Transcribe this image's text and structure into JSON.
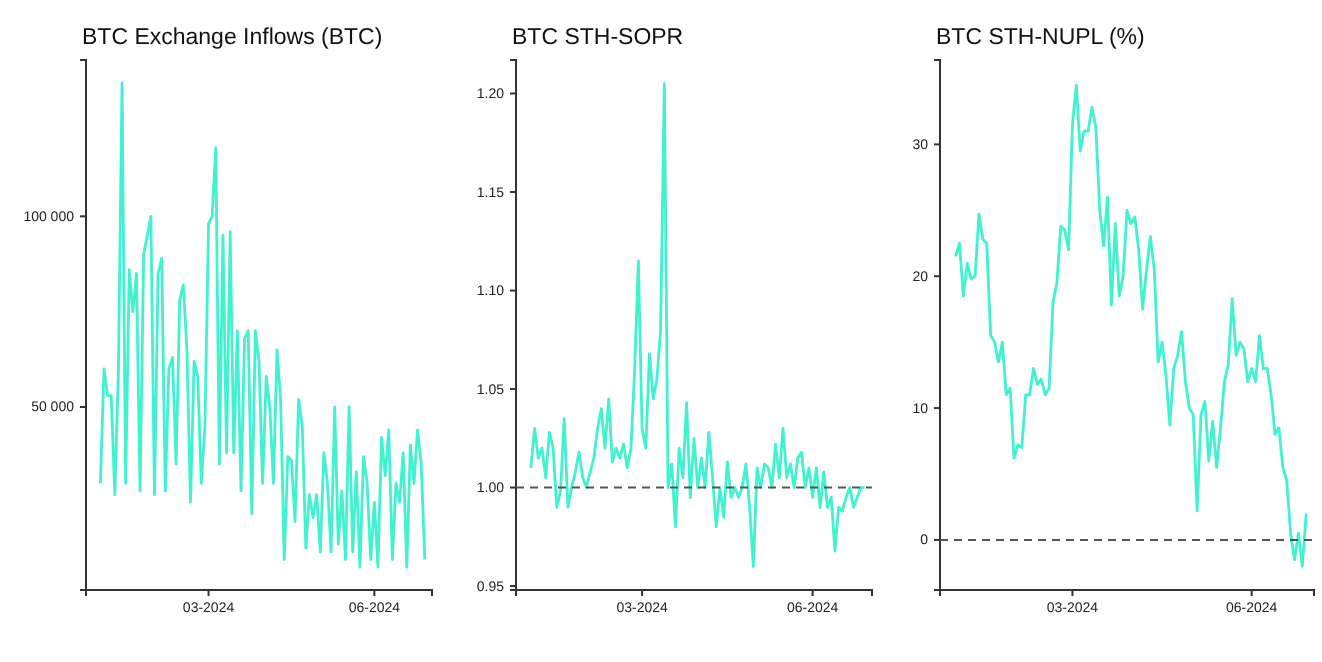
{
  "chart_data": [
    {
      "type": "line",
      "title": "BTC Exchange Inflows (BTC)",
      "x": [
        "2024-01-01",
        "2024-01-03",
        "2024-01-05",
        "2024-01-07",
        "2024-01-09",
        "2024-01-11",
        "2024-01-13",
        "2024-01-15",
        "2024-01-17",
        "2024-01-19",
        "2024-01-21",
        "2024-01-23",
        "2024-01-25",
        "2024-01-27",
        "2024-01-29",
        "2024-01-31",
        "2024-02-02",
        "2024-02-04",
        "2024-02-06",
        "2024-02-08",
        "2024-02-10",
        "2024-02-12",
        "2024-02-14",
        "2024-02-16",
        "2024-02-18",
        "2024-02-20",
        "2024-02-22",
        "2024-02-24",
        "2024-02-26",
        "2024-02-28",
        "2024-03-01",
        "2024-03-03",
        "2024-03-05",
        "2024-03-07",
        "2024-03-09",
        "2024-03-11",
        "2024-03-13",
        "2024-03-15",
        "2024-03-17",
        "2024-03-19",
        "2024-03-21",
        "2024-03-23",
        "2024-03-25",
        "2024-03-27",
        "2024-03-29",
        "2024-03-31",
        "2024-04-02",
        "2024-04-04",
        "2024-04-06",
        "2024-04-08",
        "2024-04-10",
        "2024-04-12",
        "2024-04-14",
        "2024-04-16",
        "2024-04-18",
        "2024-04-20",
        "2024-04-22",
        "2024-04-24",
        "2024-04-26",
        "2024-04-28",
        "2024-04-30",
        "2024-05-02",
        "2024-05-04",
        "2024-05-06",
        "2024-05-08",
        "2024-05-10",
        "2024-05-12",
        "2024-05-14",
        "2024-05-16",
        "2024-05-18",
        "2024-05-20",
        "2024-05-22",
        "2024-05-24",
        "2024-05-26",
        "2024-05-28",
        "2024-05-30",
        "2024-06-01",
        "2024-06-03",
        "2024-06-05",
        "2024-06-07",
        "2024-06-09",
        "2024-06-11",
        "2024-06-13",
        "2024-06-15",
        "2024-06-17",
        "2024-06-19",
        "2024-06-21",
        "2024-06-23",
        "2024-06-25",
        "2024-06-27",
        "2024-06-29"
      ],
      "series": [
        {
          "color": "#40f2cf",
          "values": [
            30000,
            60000,
            53000,
            53000,
            27000,
            60000,
            135000,
            30000,
            86000,
            75000,
            85000,
            28000,
            90000,
            95000,
            100000,
            27000,
            85000,
            89000,
            28000,
            60000,
            63000,
            35000,
            78000,
            82000,
            65000,
            25000,
            62000,
            58000,
            30000,
            45000,
            98000,
            100000,
            118000,
            35000,
            95000,
            38000,
            96000,
            38000,
            70000,
            28000,
            68000,
            70000,
            22000,
            70000,
            62000,
            30000,
            58000,
            50000,
            30000,
            65000,
            52000,
            10000,
            37000,
            36000,
            20000,
            52000,
            45000,
            13000,
            27000,
            21000,
            27000,
            12000,
            38000,
            30000,
            12000,
            50000,
            14000,
            28000,
            10000,
            50000,
            12000,
            33000,
            8000,
            37000,
            30000,
            10000,
            25000,
            8000,
            42000,
            32000,
            44000,
            10000,
            30000,
            25000,
            38000,
            8000,
            40000,
            30000,
            44000,
            35000,
            10000
          ]
        }
      ],
      "xlim": [
        "2023-12-24",
        "2024-07-03"
      ],
      "xticks": [
        {
          "value": "2024-03-01",
          "label": "03-2024"
        },
        {
          "value": "2024-06-01",
          "label": "06-2024"
        }
      ],
      "ylim": [
        2000,
        141000
      ],
      "yticks": [
        {
          "value": 50000,
          "label": "50 000"
        },
        {
          "value": 100000,
          "label": "100 000"
        }
      ],
      "grid": false
    },
    {
      "type": "line",
      "title": "BTC STH-SOPR",
      "x": [
        "2024-01-01",
        "2024-01-03",
        "2024-01-05",
        "2024-01-07",
        "2024-01-09",
        "2024-01-11",
        "2024-01-13",
        "2024-01-15",
        "2024-01-17",
        "2024-01-19",
        "2024-01-21",
        "2024-01-23",
        "2024-01-25",
        "2024-01-27",
        "2024-01-29",
        "2024-01-31",
        "2024-02-02",
        "2024-02-04",
        "2024-02-06",
        "2024-02-08",
        "2024-02-10",
        "2024-02-12",
        "2024-02-14",
        "2024-02-16",
        "2024-02-18",
        "2024-02-20",
        "2024-02-22",
        "2024-02-24",
        "2024-02-26",
        "2024-02-28",
        "2024-03-01",
        "2024-03-03",
        "2024-03-05",
        "2024-03-07",
        "2024-03-09",
        "2024-03-11",
        "2024-03-13",
        "2024-03-15",
        "2024-03-17",
        "2024-03-19",
        "2024-03-21",
        "2024-03-23",
        "2024-03-25",
        "2024-03-27",
        "2024-03-29",
        "2024-03-31",
        "2024-04-02",
        "2024-04-04",
        "2024-04-06",
        "2024-04-08",
        "2024-04-10",
        "2024-04-12",
        "2024-04-14",
        "2024-04-16",
        "2024-04-18",
        "2024-04-20",
        "2024-04-22",
        "2024-04-24",
        "2024-04-26",
        "2024-04-28",
        "2024-04-30",
        "2024-05-02",
        "2024-05-04",
        "2024-05-06",
        "2024-05-08",
        "2024-05-10",
        "2024-05-12",
        "2024-05-14",
        "2024-05-16",
        "2024-05-18",
        "2024-05-20",
        "2024-05-22",
        "2024-05-24",
        "2024-05-26",
        "2024-05-28",
        "2024-05-30",
        "2024-06-01",
        "2024-06-03",
        "2024-06-05",
        "2024-06-07",
        "2024-06-09",
        "2024-06-11",
        "2024-06-13",
        "2024-06-15",
        "2024-06-17",
        "2024-06-19",
        "2024-06-21",
        "2024-06-23",
        "2024-06-25",
        "2024-06-27",
        "2024-06-29"
      ],
      "series": [
        {
          "color": "#40f2cf",
          "values": [
            1.01,
            1.03,
            1.015,
            1.02,
            1.005,
            1.028,
            1.02,
            0.99,
            0.998,
            1.035,
            0.99,
            1.0,
            1.008,
            1.018,
            1.005,
            1.0,
            1.008,
            1.015,
            1.03,
            1.04,
            1.02,
            1.045,
            1.013,
            1.02,
            1.015,
            1.022,
            1.01,
            1.02,
            1.06,
            1.115,
            1.03,
            1.02,
            1.068,
            1.045,
            1.055,
            1.08,
            1.205,
            1.0,
            1.012,
            0.98,
            1.02,
            1.005,
            1.043,
            0.995,
            1.025,
            1.0,
            1.015,
            1.0,
            1.028,
            1.005,
            0.98,
            1.0,
            0.985,
            1.013,
            0.995,
            1.0,
            0.995,
            1.0,
            1.012,
            0.99,
            0.96,
            1.01,
            1.0,
            1.012,
            1.01,
            1.0,
            1.022,
            1.005,
            1.03,
            1.005,
            1.012,
            1.0,
            1.015,
            1.018,
            1.0,
            1.01,
            0.995,
            1.01,
            0.99,
            1.008,
            0.99,
            0.995,
            0.968,
            0.99,
            0.988,
            0.995,
            1.0,
            0.99,
            0.995,
            1.0,
            1.0
          ]
        }
      ],
      "xlim": [
        "2023-12-24",
        "2024-07-03"
      ],
      "xticks": [
        {
          "value": "2024-03-01",
          "label": "03-2024"
        },
        {
          "value": "2024-06-01",
          "label": "06-2024"
        }
      ],
      "ylim": [
        0.948,
        1.217
      ],
      "yticks": [
        0.95,
        {
          "value": 1.0,
          "label": "1.00"
        },
        1.05,
        {
          "value": 1.1,
          "label": "1.10"
        },
        1.15,
        {
          "value": 1.2,
          "label": "1.20"
        }
      ],
      "ref_lines": [
        {
          "axis": "y",
          "value": 1.0,
          "line_style": "dashed",
          "color": "#555555"
        }
      ],
      "grid": false
    },
    {
      "type": "line",
      "title": "BTC STH-NUPL (%)",
      "x": [
        "2024-01-01",
        "2024-01-03",
        "2024-01-05",
        "2024-01-07",
        "2024-01-09",
        "2024-01-11",
        "2024-01-13",
        "2024-01-15",
        "2024-01-17",
        "2024-01-19",
        "2024-01-21",
        "2024-01-23",
        "2024-01-25",
        "2024-01-27",
        "2024-01-29",
        "2024-01-31",
        "2024-02-02",
        "2024-02-04",
        "2024-02-06",
        "2024-02-08",
        "2024-02-10",
        "2024-02-12",
        "2024-02-14",
        "2024-02-16",
        "2024-02-18",
        "2024-02-20",
        "2024-02-22",
        "2024-02-24",
        "2024-02-26",
        "2024-02-28",
        "2024-03-01",
        "2024-03-03",
        "2024-03-05",
        "2024-03-07",
        "2024-03-09",
        "2024-03-11",
        "2024-03-13",
        "2024-03-15",
        "2024-03-17",
        "2024-03-19",
        "2024-03-21",
        "2024-03-23",
        "2024-03-25",
        "2024-03-27",
        "2024-03-29",
        "2024-03-31",
        "2024-04-02",
        "2024-04-04",
        "2024-04-06",
        "2024-04-08",
        "2024-04-10",
        "2024-04-12",
        "2024-04-14",
        "2024-04-16",
        "2024-04-18",
        "2024-04-20",
        "2024-04-22",
        "2024-04-24",
        "2024-04-26",
        "2024-04-28",
        "2024-04-30",
        "2024-05-02",
        "2024-05-04",
        "2024-05-06",
        "2024-05-08",
        "2024-05-10",
        "2024-05-12",
        "2024-05-14",
        "2024-05-16",
        "2024-05-18",
        "2024-05-20",
        "2024-05-22",
        "2024-05-24",
        "2024-05-26",
        "2024-05-28",
        "2024-05-30",
        "2024-06-01",
        "2024-06-03",
        "2024-06-05",
        "2024-06-07",
        "2024-06-09",
        "2024-06-11",
        "2024-06-13",
        "2024-06-15",
        "2024-06-17",
        "2024-06-19",
        "2024-06-21",
        "2024-06-23",
        "2024-06-25",
        "2024-06-27",
        "2024-06-29"
      ],
      "series": [
        {
          "color": "#40f2cf",
          "values": [
            21.5,
            22.5,
            18.5,
            21,
            19.8,
            20,
            24.7,
            22.8,
            22.5,
            15.5,
            15,
            13.5,
            15,
            11,
            11.5,
            6.2,
            7.2,
            7,
            11,
            11,
            13,
            11.8,
            12.2,
            11,
            11.5,
            18,
            19.5,
            23.8,
            23.5,
            22,
            31.5,
            34.5,
            29.5,
            31,
            31,
            32.8,
            31.3,
            25,
            22.3,
            26,
            17.8,
            24,
            18.5,
            20,
            25,
            24,
            24.5,
            22,
            17.5,
            20.5,
            23,
            20.5,
            13.5,
            15,
            12.5,
            8.7,
            13,
            14,
            15.8,
            12,
            10,
            9.5,
            2.2,
            9.5,
            10.5,
            6,
            9,
            5.5,
            8.5,
            12,
            13.3,
            18.3,
            14,
            15,
            14.5,
            12,
            13,
            12,
            15.5,
            13,
            13,
            11,
            8,
            8.5,
            5.5,
            4.5,
            0.5,
            -1.5,
            0.5,
            -2,
            2
          ]
        }
      ],
      "xlim": [
        "2023-12-24",
        "2024-07-03"
      ],
      "xticks": [
        {
          "value": "2024-03-01",
          "label": "03-2024"
        },
        {
          "value": "2024-06-01",
          "label": "06-2024"
        }
      ],
      "ylim": [
        -3.8,
        36.4
      ],
      "yticks": [
        0,
        10,
        20,
        30
      ],
      "ref_lines": [
        {
          "axis": "y",
          "value": 0,
          "line_style": "dashed",
          "color": "#555555"
        }
      ],
      "grid": false
    }
  ]
}
